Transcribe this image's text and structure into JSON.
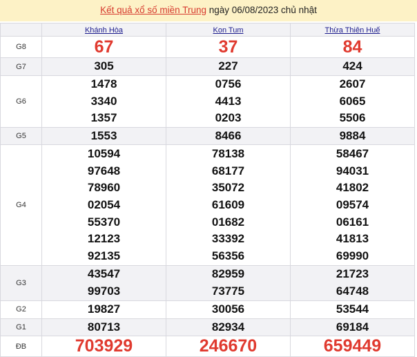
{
  "title": {
    "link": "Kết quả xổ số miền Trung",
    "rest": " ngày 06/08/2023 chủ nhật"
  },
  "provinces": [
    "Khánh Hòa",
    "Kon Tum",
    "Thừa Thiên Huế"
  ],
  "colors": {
    "accent": "#e03a2f",
    "header_bg": "#fdf2c6"
  },
  "rows": [
    {
      "label": "G8",
      "values": [
        [
          "67"
        ],
        [
          "37"
        ],
        [
          "84"
        ]
      ],
      "style": "red"
    },
    {
      "label": "G7",
      "values": [
        [
          "305"
        ],
        [
          "227"
        ],
        [
          "424"
        ]
      ]
    },
    {
      "label": "G6",
      "values": [
        [
          "1478",
          "3340",
          "1357"
        ],
        [
          "0756",
          "4413",
          "0203"
        ],
        [
          "2607",
          "6065",
          "5506"
        ]
      ]
    },
    {
      "label": "G5",
      "values": [
        [
          "1553"
        ],
        [
          "8466"
        ],
        [
          "9884"
        ]
      ]
    },
    {
      "label": "G4",
      "values": [
        [
          "10594",
          "97648",
          "78960",
          "02054",
          "55370",
          "12123",
          "92135"
        ],
        [
          "78138",
          "68177",
          "35072",
          "61609",
          "01682",
          "33392",
          "56356"
        ],
        [
          "58467",
          "94031",
          "41802",
          "09574",
          "06161",
          "41813",
          "69990"
        ]
      ]
    },
    {
      "label": "G3",
      "values": [
        [
          "43547",
          "99703"
        ],
        [
          "82959",
          "73775"
        ],
        [
          "21723",
          "64748"
        ]
      ]
    },
    {
      "label": "G2",
      "values": [
        [
          "19827"
        ],
        [
          "30056"
        ],
        [
          "53544"
        ]
      ]
    },
    {
      "label": "G1",
      "values": [
        [
          "80713"
        ],
        [
          "82934"
        ],
        [
          "69184"
        ]
      ]
    },
    {
      "label": "ĐB",
      "values": [
        [
          "703929"
        ],
        [
          "246670"
        ],
        [
          "659449"
        ]
      ],
      "style": "red"
    }
  ]
}
